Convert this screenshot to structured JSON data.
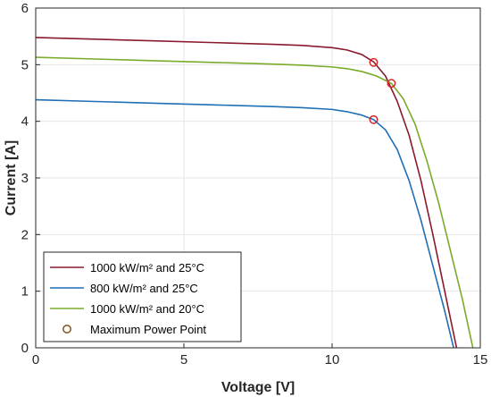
{
  "chart_data": {
    "type": "line",
    "xlabel": "Voltage [V]",
    "ylabel": "Current [A]",
    "xlim": [
      0,
      15
    ],
    "ylim": [
      0,
      6
    ],
    "xticks": [
      "0",
      "5",
      "10",
      "15"
    ],
    "yticks": [
      "0",
      "1",
      "2",
      "3",
      "4",
      "5",
      "6"
    ],
    "grid": true,
    "legend_position": "bottom-left",
    "series": [
      {
        "name": "1000 kW/m² and 25°C",
        "color": "#8b1a2e",
        "x": [
          0,
          2,
          4,
          6,
          8,
          9,
          10,
          10.5,
          11,
          11.4,
          11.8,
          12.2,
          12.6,
          13,
          13.4,
          13.8,
          14.2
        ],
        "y": [
          5.48,
          5.45,
          5.42,
          5.39,
          5.36,
          5.34,
          5.3,
          5.26,
          5.18,
          5.05,
          4.8,
          4.35,
          3.75,
          2.95,
          2.0,
          1.0,
          0
        ]
      },
      {
        "name": "800 kW/m² and 25°C",
        "color": "#1f6fb5",
        "x": [
          0,
          2,
          4,
          6,
          8,
          9,
          10,
          10.5,
          11,
          11.4,
          11.8,
          12.2,
          12.6,
          13,
          13.4,
          13.8,
          14.1
        ],
        "y": [
          4.38,
          4.35,
          4.32,
          4.29,
          4.26,
          4.24,
          4.21,
          4.17,
          4.11,
          4.03,
          3.85,
          3.5,
          2.95,
          2.25,
          1.45,
          0.65,
          0
        ]
      },
      {
        "name": "1000 kW/m² and 20°C",
        "color": "#7aab2a",
        "x": [
          0,
          2,
          4,
          6,
          8,
          9,
          10,
          10.5,
          11,
          11.5,
          12,
          12.4,
          12.8,
          13.2,
          13.6,
          14,
          14.4,
          14.75
        ],
        "y": [
          5.13,
          5.1,
          5.07,
          5.04,
          5.01,
          4.99,
          4.96,
          4.93,
          4.88,
          4.8,
          4.67,
          4.4,
          3.95,
          3.3,
          2.55,
          1.7,
          0.85,
          0
        ]
      }
    ],
    "mpp": {
      "name": "Maximum Power Point",
      "color": "#d62728",
      "points": [
        {
          "x": 11.4,
          "y": 5.04
        },
        {
          "x": 12.0,
          "y": 4.67
        },
        {
          "x": 11.4,
          "y": 4.03
        }
      ]
    }
  }
}
